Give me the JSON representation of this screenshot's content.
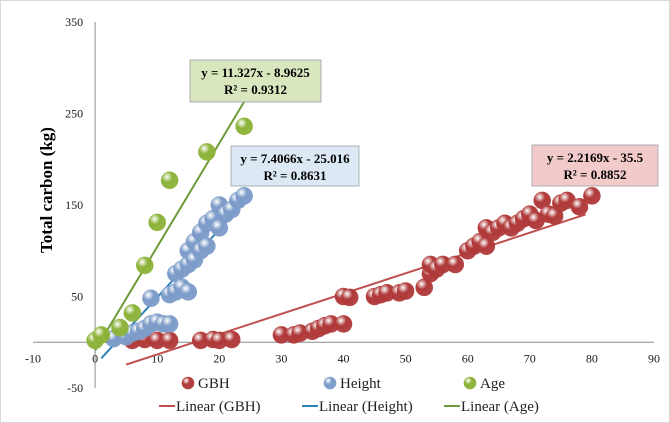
{
  "chart_data": {
    "type": "scatter",
    "ylabel": "Total carbon (kg)",
    "xlabel": "",
    "xlim": [
      -10,
      90
    ],
    "ylim": [
      -50,
      350
    ],
    "xticks": [
      "-10",
      "0",
      "10",
      "20",
      "30",
      "40",
      "50",
      "60",
      "70",
      "80",
      "90"
    ],
    "yticks": [
      "-50",
      "50",
      "150",
      "250",
      "350"
    ],
    "grid": false,
    "legend_position": "bottom",
    "series": [
      {
        "name": "GBH",
        "color": "#b03a3a",
        "points": [
          [
            6,
            2
          ],
          [
            8,
            3
          ],
          [
            10,
            2
          ],
          [
            12,
            2
          ],
          [
            17,
            2
          ],
          [
            19,
            3
          ],
          [
            20,
            2
          ],
          [
            22,
            3
          ],
          [
            30,
            8
          ],
          [
            32,
            8
          ],
          [
            33,
            10
          ],
          [
            35,
            12
          ],
          [
            36,
            15
          ],
          [
            37,
            18
          ],
          [
            38,
            20
          ],
          [
            40,
            20
          ],
          [
            40,
            50
          ],
          [
            41,
            49
          ],
          [
            45,
            50
          ],
          [
            46,
            52
          ],
          [
            47,
            54
          ],
          [
            49,
            54
          ],
          [
            50,
            56
          ],
          [
            53,
            60
          ],
          [
            54,
            75
          ],
          [
            54,
            85
          ],
          [
            55,
            80
          ],
          [
            56,
            85
          ],
          [
            58,
            85
          ],
          [
            60,
            100
          ],
          [
            61,
            105
          ],
          [
            62,
            110
          ],
          [
            63,
            105
          ],
          [
            63,
            125
          ],
          [
            64,
            120
          ],
          [
            65,
            125
          ],
          [
            66,
            130
          ],
          [
            67,
            125
          ],
          [
            68,
            130
          ],
          [
            69,
            135
          ],
          [
            70,
            140
          ],
          [
            71,
            133
          ],
          [
            72,
            155
          ],
          [
            73,
            140
          ],
          [
            74,
            138
          ],
          [
            75,
            152
          ],
          [
            76,
            155
          ],
          [
            78,
            148
          ],
          [
            80,
            160
          ]
        ]
      },
      {
        "name": "Height",
        "color": "#7d9cc9",
        "points": [
          [
            3,
            4
          ],
          [
            5,
            6
          ],
          [
            6,
            10
          ],
          [
            7,
            12
          ],
          [
            8,
            15
          ],
          [
            9,
            48
          ],
          [
            9,
            20
          ],
          [
            10,
            22
          ],
          [
            11,
            20
          ],
          [
            12,
            20
          ],
          [
            12,
            52
          ],
          [
            13,
            55
          ],
          [
            13,
            75
          ],
          [
            14,
            60
          ],
          [
            14,
            80
          ],
          [
            15,
            85
          ],
          [
            15,
            55
          ],
          [
            15,
            100
          ],
          [
            16,
            110
          ],
          [
            16,
            90
          ],
          [
            17,
            120
          ],
          [
            17,
            100
          ],
          [
            18,
            130
          ],
          [
            18,
            105
          ],
          [
            19,
            135
          ],
          [
            20,
            125
          ],
          [
            20,
            150
          ],
          [
            21,
            140
          ],
          [
            22,
            145
          ],
          [
            23,
            155
          ],
          [
            24,
            160
          ]
        ]
      },
      {
        "name": "Age",
        "color": "#8db33a",
        "points": [
          [
            0,
            2
          ],
          [
            1,
            8
          ],
          [
            4,
            16
          ],
          [
            6,
            32
          ],
          [
            8,
            84
          ],
          [
            10,
            131
          ],
          [
            12,
            177
          ],
          [
            18,
            208
          ],
          [
            24,
            236
          ]
        ]
      }
    ],
    "trendlines": [
      {
        "name": "Linear (GBH)",
        "color": "#c05050",
        "slope": 2.2169,
        "intercept": -35.5,
        "x_range": [
          5,
          79
        ],
        "equation": "y = 2.2169x - 35.5",
        "r2": "R² = 0.8852",
        "box_fill": "#f2caca"
      },
      {
        "name": "Linear (Height)",
        "color": "#2b82b8",
        "slope": 7.4066,
        "intercept": -25.016,
        "x_range": [
          1,
          24
        ],
        "equation": "y = 7.4066x - 25.016",
        "r2": "R² = 0.8631",
        "box_fill": "#dce8f4"
      },
      {
        "name": "Linear (Age)",
        "color": "#6e9a3a",
        "slope": 11.327,
        "intercept": -8.9625,
        "x_range": [
          0,
          24
        ],
        "equation": "y = 11.327x - 8.9625",
        "r2": "R² = 0.9312",
        "box_fill": "#d9e7bf"
      }
    ]
  }
}
